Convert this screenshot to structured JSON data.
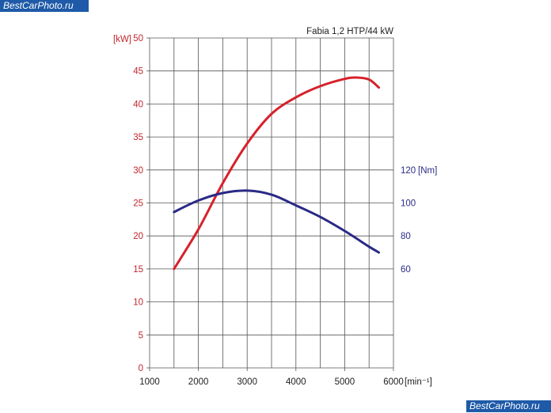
{
  "watermarks": {
    "top": "BestCarPhoto.ru",
    "bottom": "BestCarPhoto.ru"
  },
  "colors": {
    "power": "#d7212b",
    "torque": "#2a2a86",
    "axis_left": "#c0262d",
    "axis_right": "#2a2a86",
    "grid": "#555555"
  },
  "chart_data": {
    "type": "line",
    "title": "Fabia 1,2 HTP/44 kW",
    "xlabel": "[min⁻¹]",
    "ylabel_left": "[kW]",
    "ylabel_right": "[Nm]",
    "xlim": [
      1000,
      6000
    ],
    "x_ticks": [
      1000,
      2000,
      3000,
      4000,
      5000,
      6000
    ],
    "ylim_left": [
      0,
      50
    ],
    "y_ticks_left": [
      0,
      5,
      10,
      15,
      20,
      25,
      30,
      35,
      40,
      45,
      50
    ],
    "ylim_right": [
      0,
      200
    ],
    "y_ticks_right": [
      60,
      80,
      100,
      120
    ],
    "grid": true,
    "series": [
      {
        "axis": "left",
        "color": "#d7212b",
        "x": [
          1500,
          2000,
          2500,
          3000,
          3500,
          4000,
          4500,
          5000,
          5250,
          5500,
          5700
        ],
        "values": [
          15,
          21,
          28,
          34,
          38.5,
          41,
          42.7,
          43.8,
          44,
          43.7,
          42.5
        ]
      },
      {
        "axis": "right",
        "color": "#2a2a86",
        "x": [
          1500,
          2000,
          2500,
          3000,
          3500,
          4000,
          4500,
          5000,
          5500,
          5700
        ],
        "values": [
          94.5,
          101.5,
          106,
          107.5,
          105,
          98.5,
          91.5,
          83,
          73.5,
          70
        ]
      }
    ]
  }
}
